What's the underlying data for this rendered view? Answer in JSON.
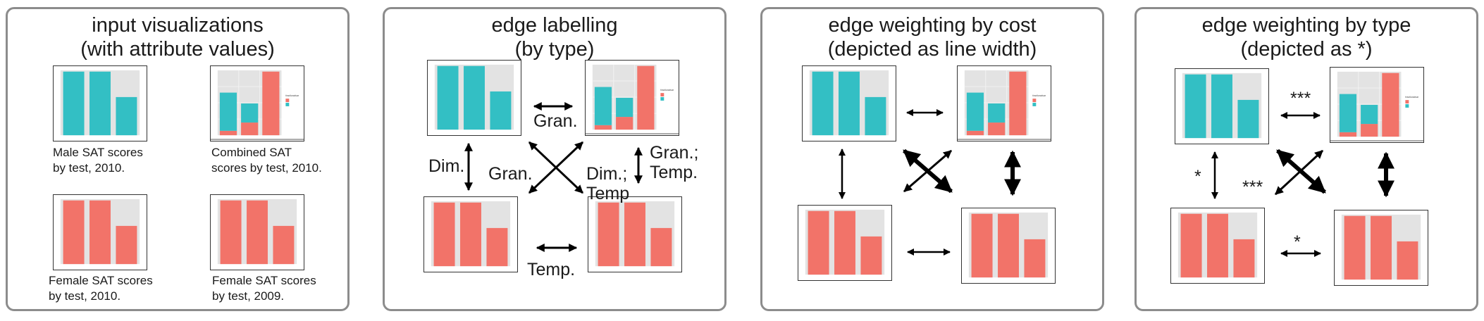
{
  "colors": {
    "teal": "#33bfc4",
    "salmon": "#f27369",
    "plot_bg": "#e3e3e3",
    "border": "#8c8c8c"
  },
  "panels": [
    {
      "id": "input",
      "title_line1": "input visualizations",
      "title_line2": "(with attribute values)",
      "captions": [
        [
          "Male SAT scores",
          "by test, 2010."
        ],
        [
          "Combined SAT",
          "scores by test, 2010."
        ],
        [
          "Female SAT scores",
          "by test, 2010."
        ],
        [
          "Female SAT scores",
          "by test, 2009."
        ]
      ]
    },
    {
      "id": "labelling",
      "title_line1": "edge labelling",
      "title_line2": "(by type)",
      "labels": {
        "top": "Gran.",
        "left": "Dim.",
        "diag_a": "Gran.",
        "diag_b1": "Dim.;",
        "diag_b2": "Temp",
        "right1": "Gran.;",
        "right2": "Temp.",
        "bottom": "Temp."
      }
    },
    {
      "id": "cost",
      "title_line1": "edge weighting by cost",
      "title_line2": "(depicted as line width)"
    },
    {
      "id": "type",
      "title_line1": "edge weighting by type",
      "title_line2": "(depicted as *)",
      "labels": {
        "top": "***",
        "left": "*",
        "diag": "***",
        "bottom": "*"
      }
    }
  ],
  "charts": {
    "male_2010": {
      "type": "bar",
      "series_color": "teal",
      "values": [
        1.0,
        1.0,
        0.6
      ]
    },
    "combined_2010": {
      "type": "stacked-bar",
      "female": [
        0.07,
        0.2,
        1.0
      ],
      "male": [
        0.6,
        0.3,
        0.0
      ],
      "legend_title": "fractionalvar"
    },
    "female_2010": {
      "type": "bar",
      "series_color": "salmon",
      "values": [
        1.0,
        1.0,
        0.6
      ]
    },
    "female_2009": {
      "type": "bar",
      "series_color": "salmon",
      "values": [
        1.0,
        1.0,
        0.6
      ]
    }
  }
}
